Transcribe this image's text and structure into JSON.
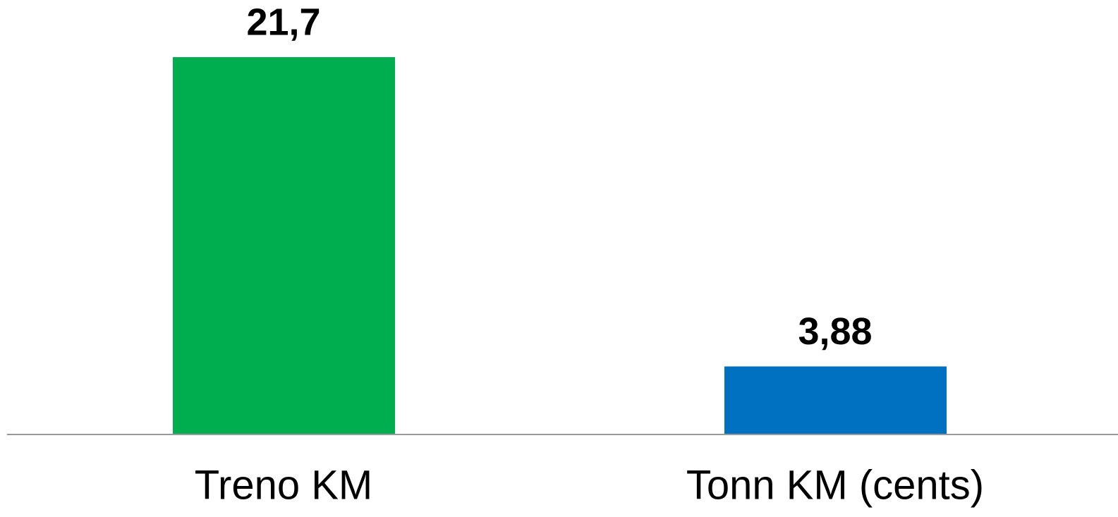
{
  "chart_data": {
    "type": "bar",
    "categories": [
      "Treno KM",
      "Tonn KM (cents)"
    ],
    "values": [
      21.7,
      3.88
    ],
    "value_labels": [
      "21,7",
      "3,88"
    ],
    "colors": [
      "#00ae4f",
      "#0070c0"
    ]
  }
}
